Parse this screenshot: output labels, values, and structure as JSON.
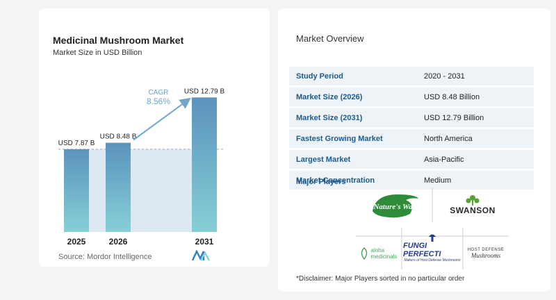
{
  "chart": {
    "title": "Medicinal Mushroom Market",
    "subtitle": "Market Size in USD Billion",
    "source": "Source:  Mordor Intelligence",
    "cagr_label": "CAGR",
    "cagr_value": "8.56%"
  },
  "chart_data": {
    "type": "bar",
    "categories": [
      "2025",
      "2026",
      "2031"
    ],
    "values": [
      7.87,
      8.48,
      12.79
    ],
    "value_labels": [
      "USD 7.87 B",
      "USD 8.48 B",
      "USD 12.79 B"
    ],
    "ylim": [
      0,
      14
    ],
    "grid": false,
    "colors": {
      "bar_top": "#5b93bd",
      "bar_bottom": "#86cfd6",
      "band": "#dde9f1",
      "arrow": "#6fa6c9"
    }
  },
  "overview": {
    "title": "Market Overview",
    "rows": [
      {
        "label": "Study Period",
        "value": "2020 - 2031"
      },
      {
        "label": "Market Size (2026)",
        "value": "USD 8.48 Billion"
      },
      {
        "label": "Market Size (2031)",
        "value": "USD 12.79 Billion"
      },
      {
        "label": "Fastest Growing Market",
        "value": "North America"
      },
      {
        "label": "Largest Market",
        "value": "Asia-Pacific"
      },
      {
        "label": "Market Concentration",
        "value": "Medium"
      }
    ]
  },
  "players": {
    "title": "Major Players",
    "logos": [
      {
        "name": "Nature's Way",
        "icon": "leaf-logo",
        "color": "#2e8b3a"
      },
      {
        "name": "SWANSON",
        "icon": "plant-logo",
        "color": "#2a2a2a"
      },
      {
        "name": "aloha medicinals",
        "icon": "leaf-logo",
        "color": "#4aa35a"
      },
      {
        "name": "FUNGI PERFECTI",
        "sub": "Makers of Host Defense Mushrooms",
        "icon": "mushroom-logo",
        "color": "#233a8a"
      },
      {
        "name": "HOST DEFENSE",
        "sub": "Mushrooms",
        "icon": "mushroom-logo",
        "color": "#333333"
      }
    ]
  },
  "disclaimer": "*Disclaimer: Major Players sorted in no particular order"
}
